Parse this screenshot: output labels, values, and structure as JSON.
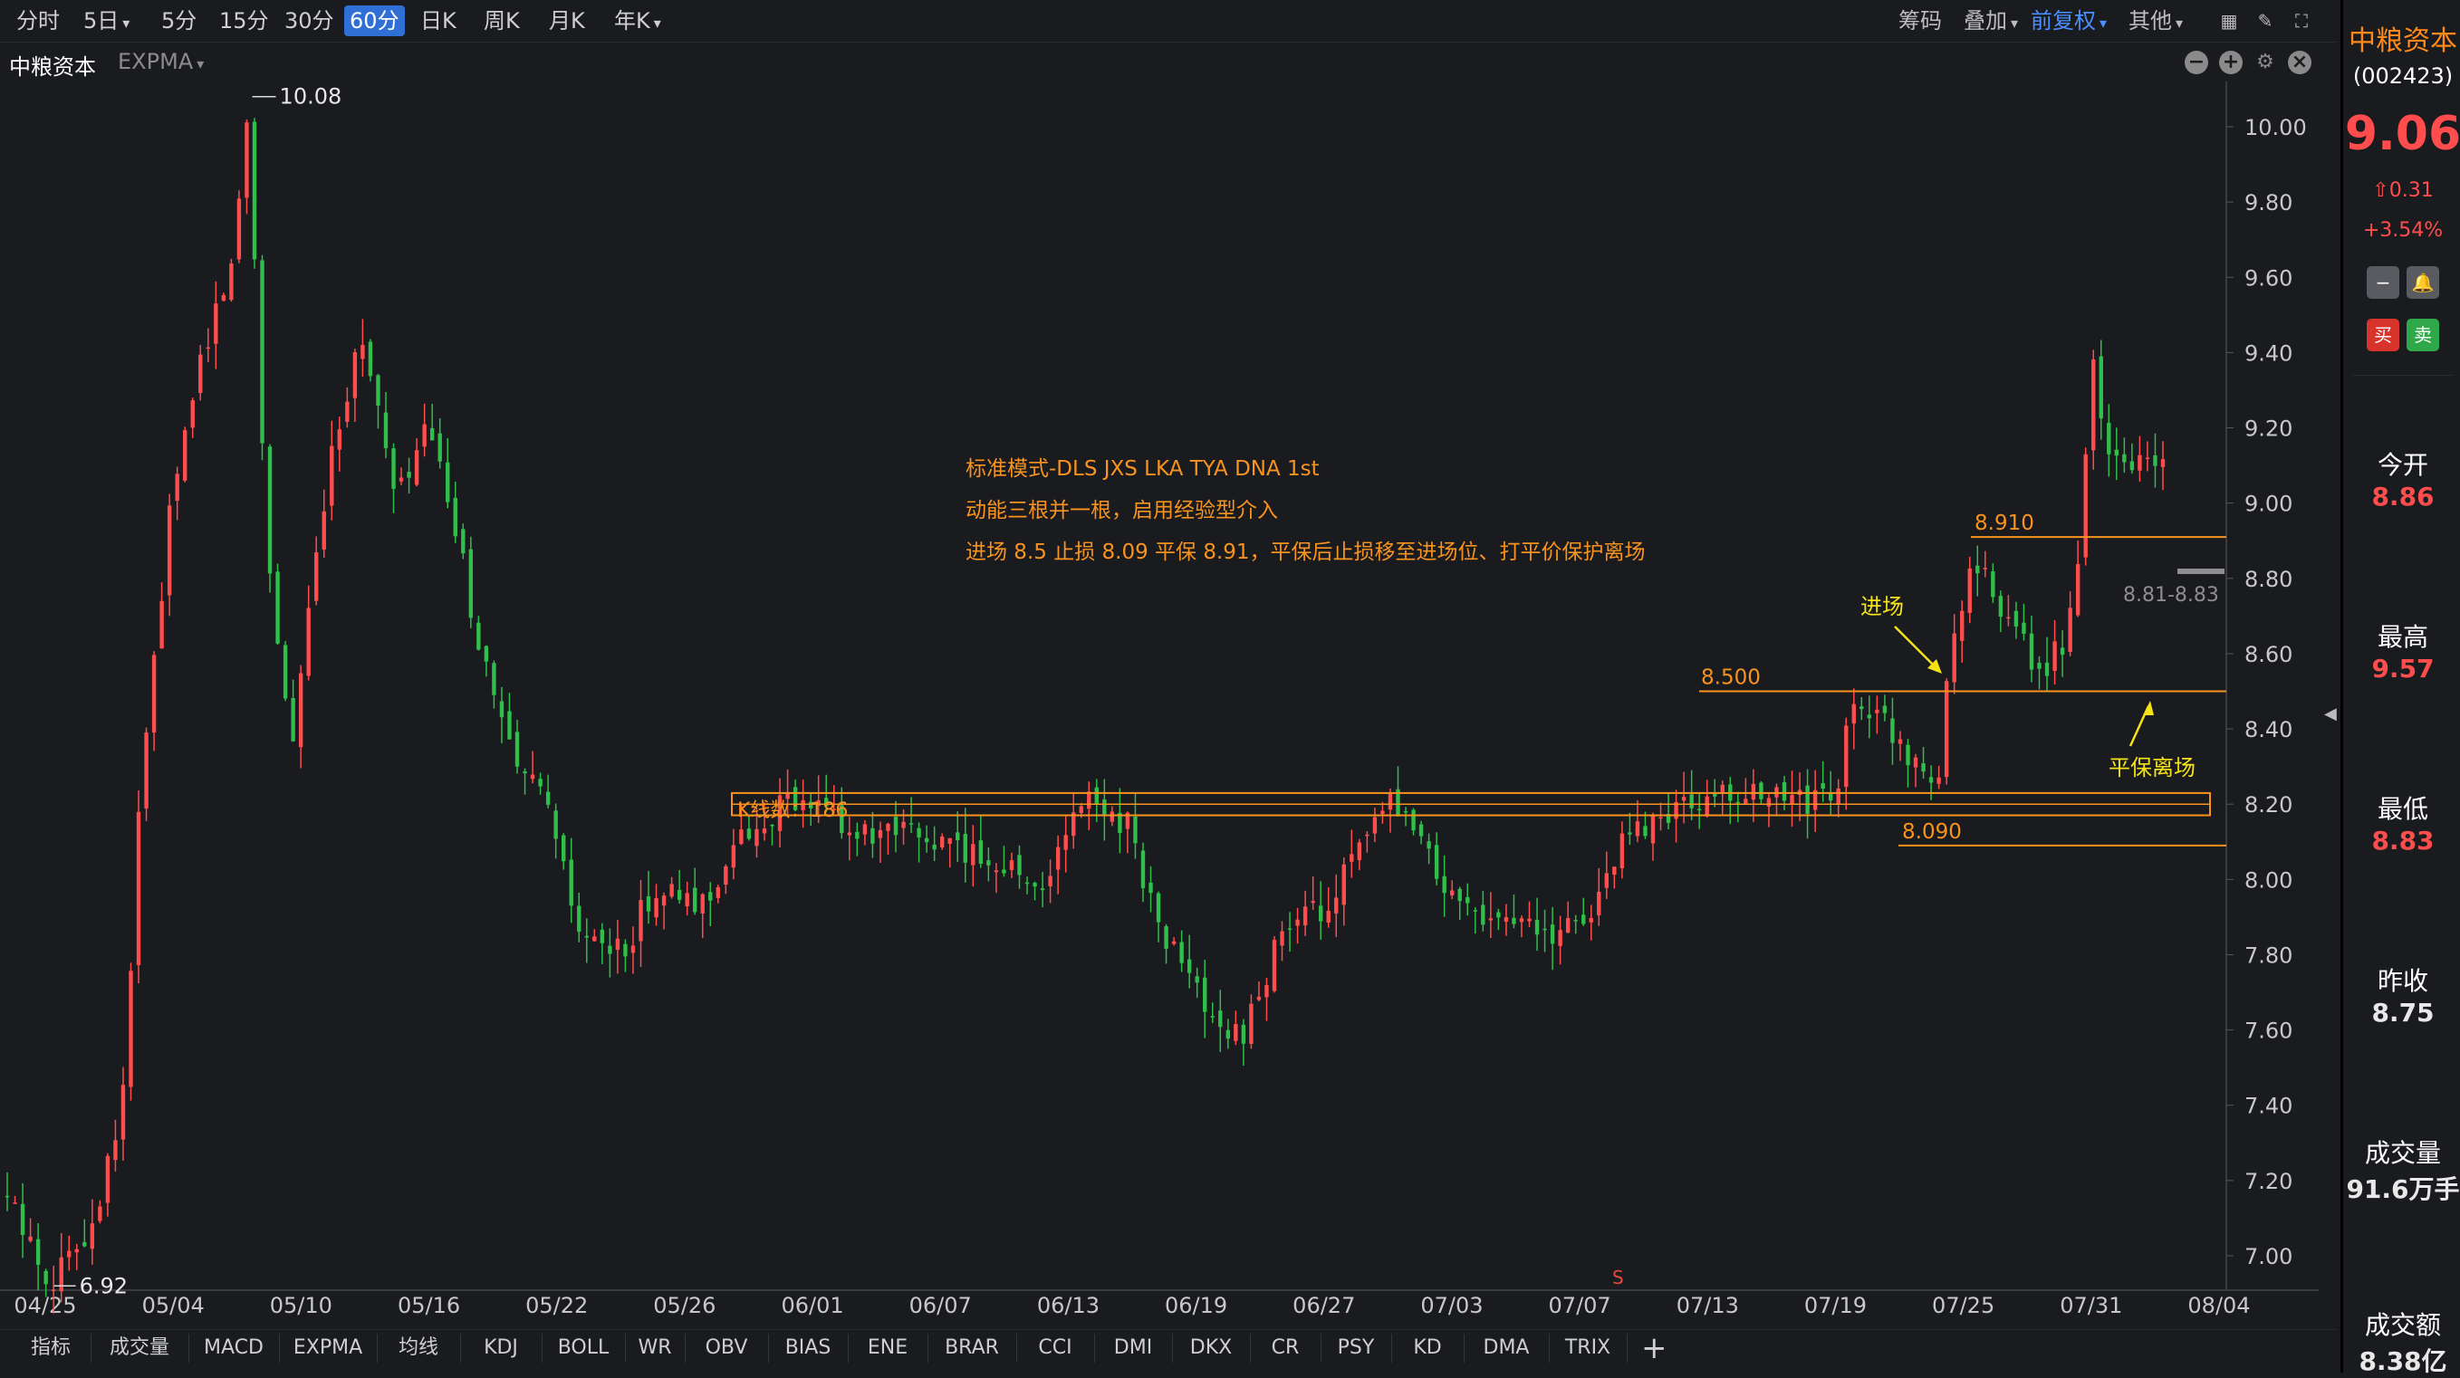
{
  "toolbar": {
    "periods": [
      "分时",
      "5日",
      "5分",
      "15分",
      "30分",
      "60分",
      "日K",
      "周K",
      "月K",
      "年K"
    ],
    "active_period": "60分",
    "right_items": [
      "筹码",
      "叠加",
      "前复权",
      "其他"
    ]
  },
  "header": {
    "stock_name": "中粮资本",
    "indicator": "EXPMA"
  },
  "sidebar": {
    "name": "中粮资本",
    "code": "(002423)",
    "price": "9.06",
    "change": "0.31",
    "change_pct": "+3.54%",
    "buy_label": "买",
    "sell_label": "卖",
    "stats": [
      {
        "label": "今开",
        "value": "8.86",
        "color": "#ff4d4d"
      },
      {
        "label": "最高",
        "value": "9.57",
        "color": "#ff4d4d"
      },
      {
        "label": "最低",
        "value": "8.83",
        "color": "#ff4d4d"
      },
      {
        "label": "昨收",
        "value": "8.75",
        "color": "#e8e8e8"
      },
      {
        "label": "成交量",
        "value": "91.6万手",
        "color": "#e8e8e8"
      },
      {
        "label": "成交额",
        "value": "8.38亿",
        "color": "#e8e8e8"
      }
    ]
  },
  "bottom_tabs": [
    "指标",
    "成交量",
    "MACD",
    "EXPMA",
    "均线",
    "KDJ",
    "BOLL",
    "WR",
    "OBV",
    "BIAS",
    "ENE",
    "BRAR",
    "CCI",
    "DMI",
    "DKX",
    "CR",
    "PSY",
    "KD",
    "DMA",
    "TRIX"
  ],
  "chart_data": {
    "type": "candlestick",
    "x_tick_labels": [
      "04/25",
      "05/04",
      "05/10",
      "05/16",
      "05/22",
      "05/26",
      "06/01",
      "06/07",
      "06/13",
      "06/19",
      "06/27",
      "07/03",
      "07/07",
      "07/13",
      "07/19",
      "07/25",
      "07/31",
      "08/04"
    ],
    "y_tick_labels": [
      "10.00",
      "9.80",
      "9.60",
      "9.40",
      "9.20",
      "9.00",
      "8.80",
      "8.60",
      "8.40",
      "8.20",
      "8.00",
      "7.80",
      "7.60",
      "7.40",
      "7.20",
      "7.00"
    ],
    "ylim": [
      6.9,
      10.1
    ],
    "high_label": "10.08",
    "low_label": "6.92",
    "annotations": [
      "标准模式-DLS JXS LKA TYA DNA 1st",
      "动能三根并一根，启用经验型介入",
      "进场 8.5 止损 8.09 平保 8.91，平保后止损移至进场位、打平价保护离场"
    ],
    "levels": [
      {
        "label": "8.910",
        "value": 8.91
      },
      {
        "label": "8.500",
        "value": 8.5
      },
      {
        "label": "8.090",
        "value": 8.09
      }
    ],
    "range_box_label": "K线数：186",
    "range_box_price": [
      8.18,
      8.22
    ],
    "entry_label": "进场",
    "exit_label": "平保离场",
    "range_readout": "8.81-8.83",
    "marker_s": "S",
    "colors": {
      "up": "#ff4d4d",
      "down": "#2fbf4a",
      "level": "#f7931e",
      "yellow": "#f5e316"
    }
  }
}
